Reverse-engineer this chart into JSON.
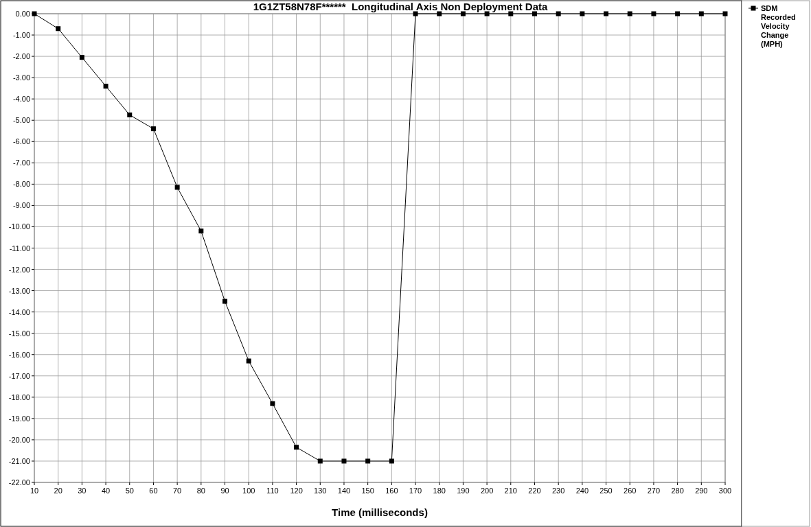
{
  "chart_data": {
    "type": "line",
    "title": "1G1ZT58N78F******  Longitudinal Axis Non Deployment Data",
    "xlabel": "Time (milliseconds)",
    "x": [
      10,
      20,
      30,
      40,
      50,
      60,
      70,
      80,
      90,
      100,
      110,
      120,
      130,
      140,
      150,
      160,
      170,
      180,
      190,
      200,
      210,
      220,
      230,
      240,
      250,
      260,
      270,
      280,
      290,
      300
    ],
    "series": [
      {
        "name": "SDM Recorded Velocity Change (MPH)",
        "color": "#000000",
        "values": [
          0,
          -0.7,
          -2.05,
          -3.4,
          -4.75,
          -5.4,
          -8.15,
          -10.2,
          -13.5,
          -16.3,
          -18.3,
          -20.35,
          -21,
          -21,
          -21,
          -21,
          0,
          0,
          0,
          0,
          0,
          0,
          0,
          0,
          0,
          0,
          0,
          0,
          0,
          0
        ]
      }
    ],
    "xlim": [
      10,
      300
    ],
    "xticks": [
      10,
      20,
      30,
      40,
      50,
      60,
      70,
      80,
      90,
      100,
      110,
      120,
      130,
      140,
      150,
      160,
      170,
      180,
      190,
      200,
      210,
      220,
      230,
      240,
      250,
      260,
      270,
      280,
      290,
      300
    ],
    "ylim": [
      -22,
      0
    ],
    "yticks": [
      {
        "value": 0,
        "label": "0.00"
      },
      {
        "value": -1,
        "label": "-1.00"
      },
      {
        "value": -2,
        "label": "-2.00"
      },
      {
        "value": -3,
        "label": "-3.00"
      },
      {
        "value": -4,
        "label": "-4.00"
      },
      {
        "value": -5,
        "label": "-5.00"
      },
      {
        "value": -6,
        "label": "-6.00"
      },
      {
        "value": -7,
        "label": "-7.00"
      },
      {
        "value": -8,
        "label": "-8.00"
      },
      {
        "value": -9,
        "label": "-9.00"
      },
      {
        "value": -10,
        "label": "-10.00"
      },
      {
        "value": -11,
        "label": "-11.00"
      },
      {
        "value": -12,
        "label": "-12.00"
      },
      {
        "value": -13,
        "label": "-13.00"
      },
      {
        "value": -14,
        "label": "-14.00"
      },
      {
        "value": -15,
        "label": "-15.00"
      },
      {
        "value": -16,
        "label": "-16.00"
      },
      {
        "value": -17,
        "label": "-17.00"
      },
      {
        "value": -18,
        "label": "-18.00"
      },
      {
        "value": -19,
        "label": "-19.00"
      },
      {
        "value": -20,
        "label": "-20.00"
      },
      {
        "value": -21,
        "label": "-21.00"
      },
      {
        "value": -22,
        "label": "-22.00"
      }
    ],
    "grid": true,
    "legend": "top right",
    "marker": "square",
    "line_style": "solid"
  }
}
